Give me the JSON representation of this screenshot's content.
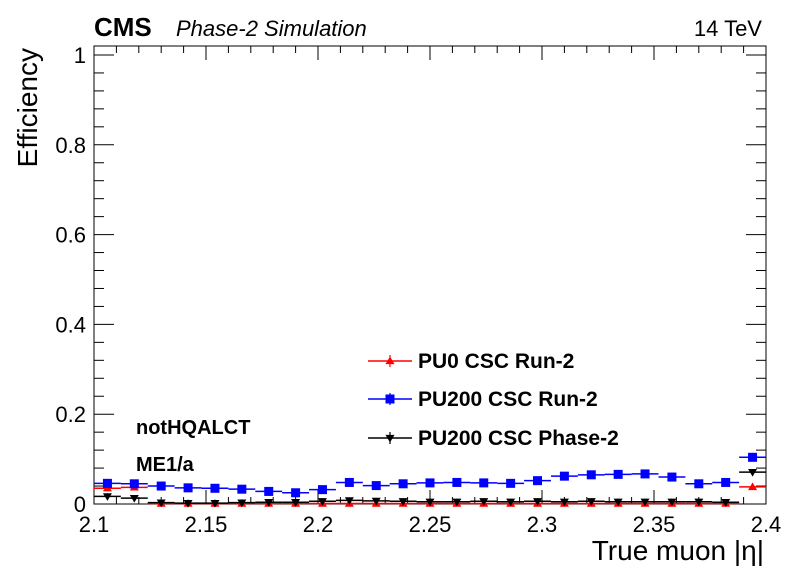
{
  "header": {
    "experiment": "CMS",
    "status": "Phase-2 Simulation",
    "energy": "14 TeV"
  },
  "annotations": [
    "notHQALCT",
    "ME1/a"
  ],
  "chart_data": {
    "type": "scatter",
    "xlabel": "True muon |η|",
    "ylabel": "Efficiency",
    "xlim": [
      2.1,
      2.4
    ],
    "ylim": [
      0,
      1.02
    ],
    "x_ticks": [
      2.1,
      2.15,
      2.2,
      2.25,
      2.3,
      2.35,
      2.4
    ],
    "x_tick_labels": [
      "2.1",
      "2.15",
      "2.2",
      "2.25",
      "2.3",
      "2.35",
      "2.4"
    ],
    "y_ticks": [
      0,
      0.2,
      0.4,
      0.6,
      0.8,
      1
    ],
    "y_tick_labels": [
      "0",
      "0.2",
      "0.4",
      "0.6",
      "0.8",
      "1"
    ],
    "grid": false,
    "legend_position": "bottom-right",
    "bin_edges_x": [
      2.1,
      2.4
    ],
    "n_bins": 25,
    "x": [
      2.106,
      2.118,
      2.13,
      2.142,
      2.154,
      2.166,
      2.178,
      2.19,
      2.202,
      2.214,
      2.226,
      2.238,
      2.25,
      2.262,
      2.274,
      2.286,
      2.298,
      2.31,
      2.322,
      2.334,
      2.346,
      2.358,
      2.37,
      2.382,
      2.394
    ],
    "series": [
      {
        "name": "PU0 CSC Run-2",
        "color": "#ff0000",
        "marker": "triangle-up",
        "values": [
          0.035,
          0.037,
          0.001,
          0.001,
          0.001,
          0.001,
          0.001,
          0.001,
          0.001,
          0.001,
          0.001,
          0.001,
          0.001,
          0.001,
          0.001,
          0.001,
          0.001,
          0.001,
          0.001,
          0.001,
          0.001,
          0.001,
          0.001,
          0.001,
          0.038
        ]
      },
      {
        "name": "PU200 CSC Run-2",
        "color": "#0000ff",
        "marker": "square",
        "values": [
          0.046,
          0.045,
          0.04,
          0.036,
          0.035,
          0.033,
          0.028,
          0.025,
          0.032,
          0.048,
          0.041,
          0.045,
          0.047,
          0.048,
          0.047,
          0.046,
          0.052,
          0.062,
          0.065,
          0.066,
          0.067,
          0.06,
          0.045,
          0.048,
          0.104
        ]
      },
      {
        "name": "PU200 CSC Phase-2",
        "color": "#000000",
        "marker": "triangle-down",
        "values": [
          0.017,
          0.013,
          0.003,
          0.002,
          0.002,
          0.003,
          0.004,
          0.004,
          0.006,
          0.008,
          0.007,
          0.006,
          0.005,
          0.005,
          0.006,
          0.005,
          0.006,
          0.005,
          0.006,
          0.005,
          0.005,
          0.005,
          0.005,
          0.004,
          0.071
        ]
      }
    ]
  }
}
